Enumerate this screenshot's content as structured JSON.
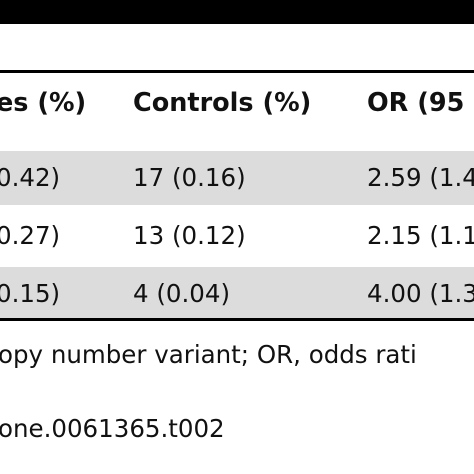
{
  "table": {
    "headers": [
      "es (%)",
      "Controls (%)",
      "OR (95"
    ],
    "rows": [
      [
        "0.42)",
        "17 (0.16)",
        "2.59 (1.4"
      ],
      [
        "0.27)",
        "13 (0.12)",
        "2.15 (1.1"
      ],
      [
        "0.15)",
        "4 (0.04)",
        "4.00 (1.3"
      ]
    ]
  },
  "footnotes": {
    "abbreviations": "opy number variant; OR, odds rati",
    "doi": "one.0061365.t002"
  }
}
